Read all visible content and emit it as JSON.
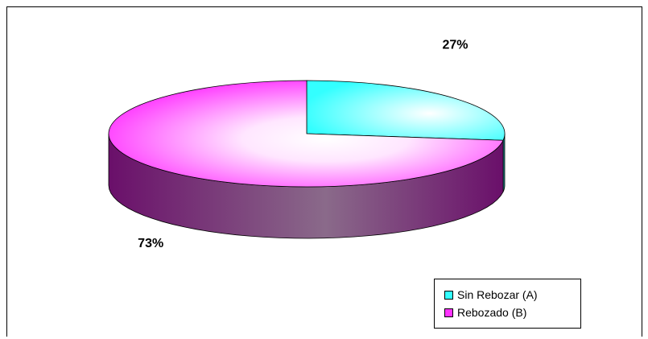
{
  "chart_data": {
    "type": "pie",
    "title": "",
    "categories": [
      "Sin Rebozar (A)",
      "Rebozado (B)"
    ],
    "values": [
      27,
      73
    ],
    "data_labels": [
      "27%",
      "73%"
    ],
    "colors": [
      "#33ffff",
      "#ff33ff"
    ],
    "side_colors": [
      "#208a8a",
      "#7a137a"
    ],
    "legend_position": "bottom-right"
  }
}
